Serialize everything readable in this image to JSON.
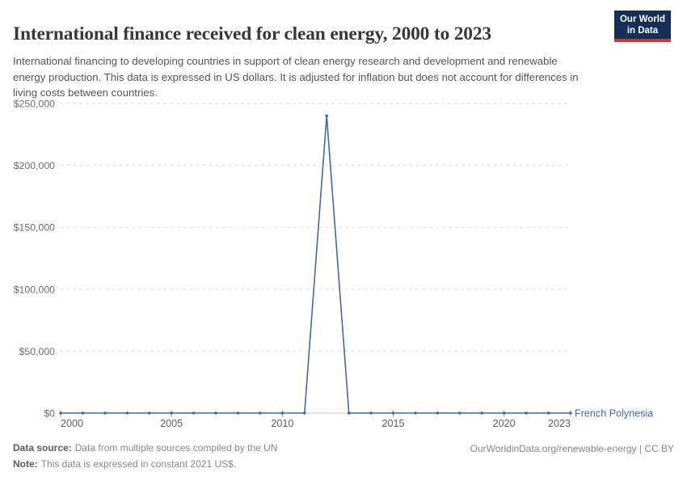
{
  "header": {
    "title": "International finance received for clean energy, 2000 to 2023",
    "subtitle": "International financing to developing countries in support of clean energy research and development and renewable energy production. This data is expressed in US dollars. It is adjusted for inflation but does not account for differences in living costs between countries.",
    "logo": {
      "line1": "Our World",
      "line2": "in Data"
    }
  },
  "chart_data": {
    "type": "line",
    "title": "International finance received for clean energy, 2000 to 2023",
    "xlabel": "",
    "ylabel": "",
    "x": [
      2000,
      2001,
      2002,
      2003,
      2004,
      2005,
      2006,
      2007,
      2008,
      2009,
      2010,
      2011,
      2012,
      2013,
      2014,
      2015,
      2016,
      2017,
      2018,
      2019,
      2020,
      2021,
      2022,
      2023
    ],
    "series": [
      {
        "name": "French Polynesia",
        "color": "#3e68b2",
        "values": [
          0,
          0,
          0,
          0,
          0,
          0,
          0,
          0,
          0,
          0,
          0,
          0,
          240000,
          0,
          0,
          0,
          0,
          0,
          0,
          0,
          0,
          0,
          0,
          0
        ]
      }
    ],
    "xlim": [
      2000,
      2023
    ],
    "ylim": [
      0,
      250000
    ],
    "xticks": [
      2000,
      2005,
      2010,
      2015,
      2020,
      2023
    ],
    "yticks": [
      {
        "value": 0,
        "label": "$0"
      },
      {
        "value": 50000,
        "label": "$50,000"
      },
      {
        "value": 100000,
        "label": "$100,000"
      },
      {
        "value": 150000,
        "label": "$150,000"
      },
      {
        "value": 200000,
        "label": "$200,000"
      },
      {
        "value": 250000,
        "label": "$250,000"
      }
    ],
    "grid": "horizontal-dashed",
    "legend": "line-end-label"
  },
  "colors": {
    "line": "#3e68b2",
    "grid": "#dadada",
    "axis": "#c8c8c8",
    "tick_mark": "#9aa4b2",
    "y_tick_text": "#6e6e6e",
    "x_tick_text": "#606060",
    "logo_bg": "#132f57",
    "logo_accent": "#d0342a"
  },
  "footer": {
    "source_label": "Data source:",
    "source_text": "Data from multiple sources compiled by the UN",
    "note_label": "Note:",
    "note_text": "This data is expressed in constant 2021 US$.",
    "credit": "OurWorldinData.org/renewable-energy | CC BY"
  }
}
